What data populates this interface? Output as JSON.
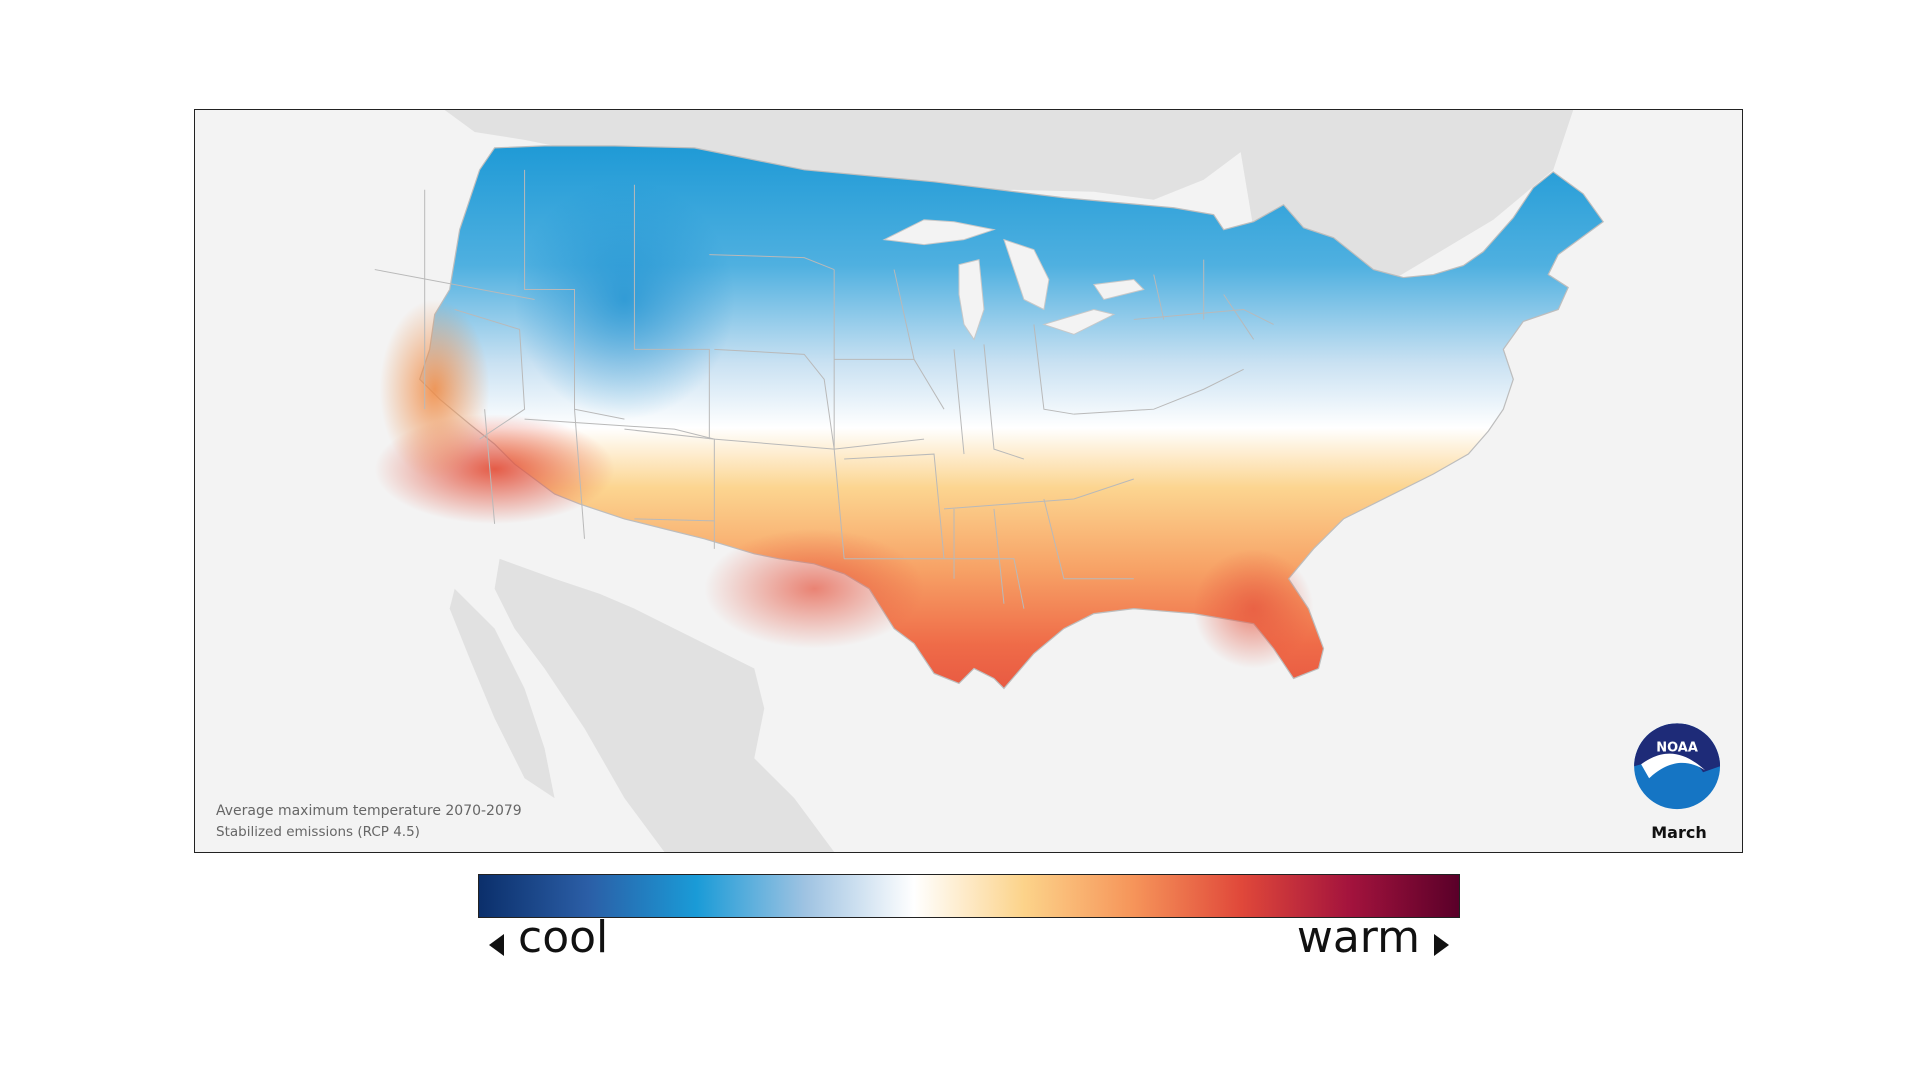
{
  "map": {
    "caption_title": "Average maximum temperature 2070-2079",
    "caption_subtitle": "Stabilized emissions (RCP 4.5)",
    "month": "March",
    "logo_text": "NOAA"
  },
  "legend": {
    "cool_label": "cool",
    "warm_label": "warm",
    "colors": [
      "#0b2f6b",
      "#2b5ea6",
      "#1a9bd7",
      "#9fc3e2",
      "#ffffff",
      "#fcd38a",
      "#f6955a",
      "#e0483a",
      "#a3133d",
      "#5a0029"
    ]
  }
}
